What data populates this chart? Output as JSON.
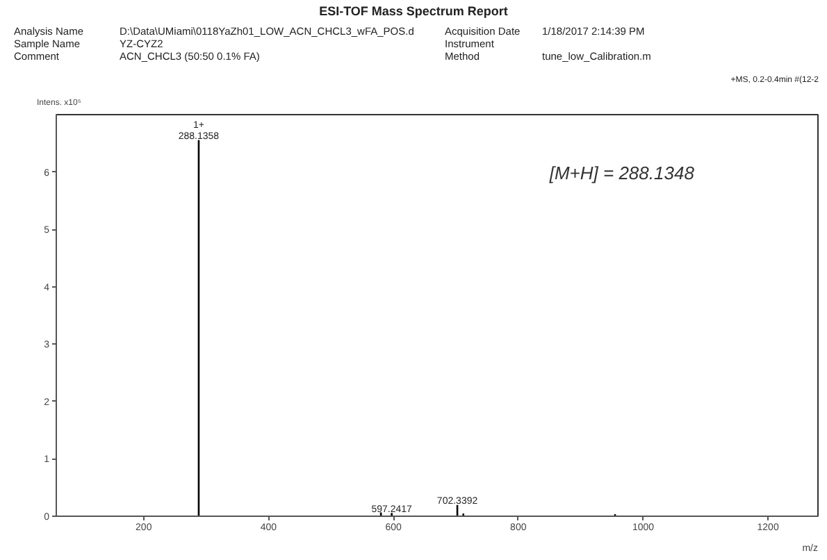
{
  "chart_data": {
    "type": "bar",
    "title": "ESI-TOF Mass Spectrum Report",
    "xlabel": "m/z",
    "ylabel": "Intens. x10⁵",
    "x": [
      288.1358,
      580,
      597.2417,
      702.3392,
      712,
      955
    ],
    "values": [
      6.55,
      0.06,
      0.05,
      0.19,
      0.04,
      0.03
    ],
    "color": "#000000",
    "xlim": [
      60,
      1280
    ],
    "xticks": [
      200,
      400,
      600,
      800,
      1000,
      1200
    ],
    "ylim": [
      0,
      7.0
    ],
    "yticks": [
      0,
      1,
      2,
      3,
      4,
      5,
      6
    ],
    "grid": false,
    "annotations": [
      "Analysis Name",
      "D:\\Data\\UMiami\\0118YaZh01_LOW_ACN_CHCL3_wFA_POS.d",
      "Sample Name",
      "YZ-CYZ2",
      "Comment",
      "ACN_CHCL3 (50:50 0.1% FA)",
      "Acquisition Date",
      "1/18/2017 2:14:39 PM",
      "Instrument",
      "Method",
      "tune_low_Calibration.m",
      "+MS, 0.2-0.4min #(12-2",
      "[M+H] = 288.1348",
      {
        "text": "1+",
        "x": 288.1358,
        "y": 6.55
      },
      {
        "text": "288.1358",
        "x": 288.1358,
        "y": 6.55
      },
      {
        "text": "597.2417",
        "x": 597.2417,
        "y": 0.05
      },
      {
        "text": "702.3392",
        "x": 702.3392,
        "y": 0.19
      }
    ]
  }
}
